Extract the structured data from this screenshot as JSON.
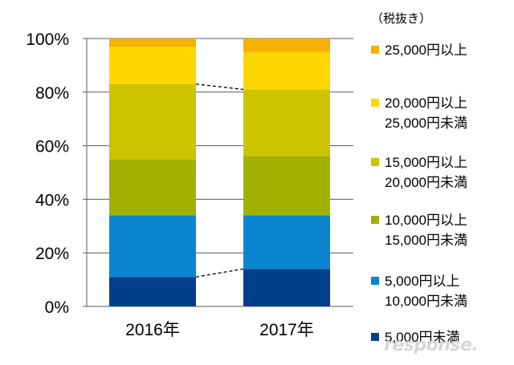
{
  "chart_data": {
    "type": "bar",
    "stacked": true,
    "categories": [
      "2016年",
      "2017年"
    ],
    "ylim": [
      0,
      100
    ],
    "yticks": [
      "0%",
      "20%",
      "40%",
      "60%",
      "80%",
      "100%"
    ],
    "grid": true,
    "legend_note": "（税抜き）",
    "legend_position": "right",
    "series": [
      {
        "name": [
          "5,000円未満"
        ],
        "color": "#003f8a",
        "values": [
          11,
          14
        ]
      },
      {
        "name": [
          "5,000円以上",
          "10,000円未満"
        ],
        "color": "#0a86d0",
        "values": [
          23,
          20
        ]
      },
      {
        "name": [
          "10,000円以上",
          "15,000円未満"
        ],
        "color": "#a2b000",
        "values": [
          21,
          22
        ]
      },
      {
        "name": [
          "15,000円以上",
          "20,000円未満"
        ],
        "color": "#cdc400",
        "values": [
          28,
          25
        ]
      },
      {
        "name": [
          "20,000円以上",
          "25,000円未満"
        ],
        "color": "#ffd700",
        "values": [
          14,
          14
        ]
      },
      {
        "name": [
          "25,000円以上"
        ],
        "color": "#f5b000",
        "values": [
          3,
          5
        ]
      }
    ],
    "connector_lines": [
      {
        "between_series": [
          0,
          1
        ],
        "style": "dashed"
      },
      {
        "between_series": [
          3,
          4
        ],
        "style": "dashed"
      }
    ]
  },
  "watermark": "response."
}
